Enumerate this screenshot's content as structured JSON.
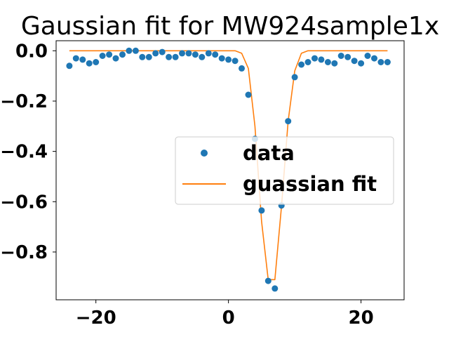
{
  "chart_data": {
    "type": "scatter",
    "title": "Gaussian fit for MW924sample1x",
    "xlabel": "",
    "ylabel": "",
    "xlim": [
      -26,
      26.5
    ],
    "ylim": [
      -0.99,
      0.04
    ],
    "xticks": [
      {
        "value": -20,
        "label": "−20"
      },
      {
        "value": 0,
        "label": "0"
      },
      {
        "value": 20,
        "label": "20"
      }
    ],
    "yticks": [
      {
        "value": 0.0,
        "label": "0.0"
      },
      {
        "value": -0.2,
        "label": "−0.2"
      },
      {
        "value": -0.4,
        "label": "−0.4"
      },
      {
        "value": -0.6,
        "label": "−0.6"
      },
      {
        "value": -0.8,
        "label": "−0.8"
      }
    ],
    "grid": false,
    "legend_position": "center-right",
    "series": [
      {
        "name": "data",
        "kind": "scatter",
        "color": "#1f77b4",
        "x": [
          -24,
          -23,
          -22,
          -21,
          -20,
          -19,
          -18,
          -17,
          -16,
          -15,
          -14,
          -13,
          -12,
          -11,
          -10,
          -9,
          -8,
          -7,
          -6,
          -5,
          -4,
          -3,
          -2,
          -1,
          0,
          1,
          2,
          3,
          4,
          5,
          6,
          7,
          8,
          9,
          10,
          11,
          12,
          13,
          14,
          15,
          16,
          17,
          18,
          19,
          20,
          21,
          22,
          23,
          24
        ],
        "y": [
          -0.06,
          -0.03,
          -0.035,
          -0.05,
          -0.045,
          -0.02,
          -0.015,
          -0.03,
          -0.015,
          0.0,
          0.0,
          -0.025,
          -0.025,
          -0.01,
          -0.005,
          -0.025,
          -0.025,
          -0.01,
          -0.01,
          -0.015,
          -0.025,
          -0.01,
          -0.015,
          -0.03,
          -0.035,
          -0.04,
          -0.07,
          -0.175,
          -0.35,
          -0.635,
          -0.915,
          -0.945,
          -0.615,
          -0.28,
          -0.105,
          -0.055,
          -0.045,
          -0.03,
          -0.035,
          -0.045,
          -0.05,
          -0.02,
          -0.025,
          -0.04,
          -0.05,
          -0.02,
          -0.03,
          -0.045,
          -0.045
        ]
      },
      {
        "name": "guassian fit",
        "kind": "line",
        "color": "#ff7f0e",
        "x": [
          -24,
          1,
          2,
          3,
          4,
          5,
          6,
          7,
          8,
          9,
          10,
          11,
          12,
          13,
          24
        ],
        "y": [
          0.0,
          0.0,
          -0.01,
          -0.07,
          -0.3,
          -0.68,
          -0.91,
          -0.91,
          -0.62,
          -0.28,
          -0.08,
          -0.01,
          0.0,
          0.0,
          0.0
        ]
      }
    ]
  }
}
